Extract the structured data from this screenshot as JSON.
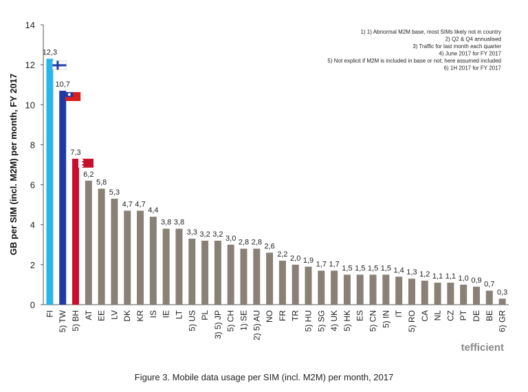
{
  "chart_data": {
    "type": "bar",
    "title": "",
    "ylabel": "GB per SIM (incl. M2M) per month, FY 2017",
    "xlabel": "",
    "ylim": [
      0,
      14
    ],
    "yticks": [
      0,
      2,
      4,
      6,
      8,
      10,
      12,
      14
    ],
    "grid": false,
    "categories": [
      "FI",
      "5) TW",
      "5) BH",
      "AT",
      "EE",
      "LV",
      "DK",
      "KR",
      "IS",
      "IE",
      "LT",
      "5) US",
      "PL",
      "3) 5) JP",
      "5) CH",
      "1) SE",
      "2) 5) AU",
      "NO",
      "FR",
      "TR",
      "5) HU",
      "5) SG",
      "4) UK",
      "5) HK",
      "ES",
      "5) CN",
      "5) IN",
      "IT",
      "5) RO",
      "CA",
      "NL",
      "CZ",
      "PT",
      "DE",
      "BE",
      "6) GR"
    ],
    "values": [
      12.3,
      10.7,
      7.3,
      6.2,
      5.8,
      5.3,
      4.7,
      4.7,
      4.4,
      3.8,
      3.8,
      3.3,
      3.2,
      3.2,
      3.0,
      2.8,
      2.8,
      2.6,
      2.2,
      2.0,
      1.9,
      1.7,
      1.7,
      1.5,
      1.5,
      1.5,
      1.5,
      1.4,
      1.3,
      1.2,
      1.1,
      1.1,
      1.0,
      0.9,
      0.7,
      0.3
    ],
    "value_labels": [
      "12,3",
      "10,7",
      "7,3",
      "6,2",
      "5,8",
      "5,3",
      "4,7",
      "4,7",
      "4,4",
      "3,8",
      "3,8",
      "3,3",
      "3,2",
      "3,2",
      "3,0",
      "2,8",
      "2,8",
      "2,6",
      "2,2",
      "2,0",
      "1,9",
      "1,7",
      "1,7",
      "1,5",
      "1,5",
      "1,5",
      "1,5",
      "1,4",
      "1,3",
      "1,2",
      "1,1",
      "1,1",
      "1,0",
      "0,9",
      "0,7",
      "0,3"
    ],
    "colors": {
      "default": "#8a8176",
      "FI": "#29b6ea",
      "5) TW": "#1f3aa6",
      "5) BH": "#c8102e"
    },
    "flags": [
      "finland-flag-icon",
      "taiwan-flag-icon",
      "bahrain-flag-icon"
    ],
    "notes": [
      "1) 1) Abnormal M2M base, most SIMs likely not in country",
      "2) Q2 & Q4 annualised",
      "3) Traffic for last month each quarter",
      "4) June 2017 for FY 2017",
      "5) Not explicit if M2M is included in base or not; here assumed included",
      "6) 1H 2017 for FY 2017"
    ]
  },
  "logo_text": "tefficient",
  "caption": "Figure 3. Mobile data usage per SIM (incl. M2M) per month, 2017"
}
